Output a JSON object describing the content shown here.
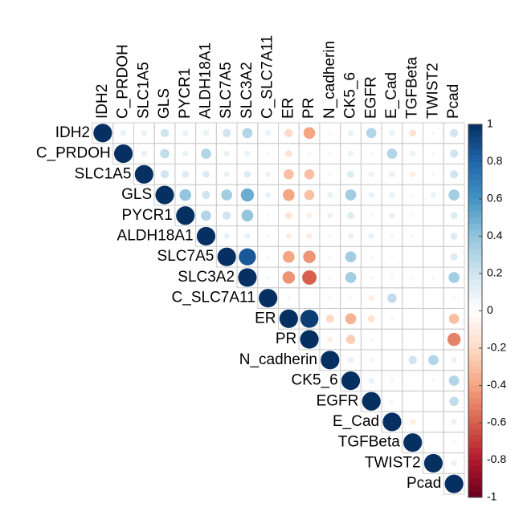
{
  "chart_data": {
    "type": "corrplot",
    "variables": [
      "IDH2",
      "C_PRDOH",
      "SLC1A5",
      "GLS",
      "PYCR1",
      "ALDH18A1",
      "SLC7A5",
      "SLC3A2",
      "C_SLC7A11",
      "ER",
      "PR",
      "N_cadherin",
      "CK5_6",
      "EGFR",
      "E_Cad",
      "TGFBeta",
      "TWIST2",
      "Pcad"
    ],
    "values": [
      [
        1,
        0.1,
        0.1,
        0.2,
        0.1,
        0.1,
        0.2,
        0.3,
        0.1,
        -0.2,
        -0.4,
        0.05,
        0.1,
        0.3,
        0.1,
        -0.15,
        0.05,
        0.2
      ],
      [
        1,
        0.1,
        0.25,
        0.1,
        0.3,
        0.1,
        0.1,
        0.05,
        -0.15,
        -0.05,
        0.05,
        0.1,
        0.05,
        0.3,
        0.1,
        0.05,
        0.2
      ],
      [
        1,
        0.2,
        0.15,
        0.15,
        0.1,
        0.15,
        0.1,
        -0.3,
        -0.3,
        0.05,
        0.15,
        0.1,
        0.1,
        -0.1,
        0.05,
        0.2
      ],
      [
        1,
        0.4,
        0.2,
        0.35,
        0.5,
        0.1,
        -0.4,
        -0.3,
        0.1,
        0.35,
        0.1,
        0.1,
        0.05,
        0.1,
        0.35
      ],
      [
        1,
        0.3,
        0.2,
        0.4,
        0.05,
        -0.15,
        -0.1,
        0.1,
        0.15,
        0.05,
        0.1,
        0.05,
        0.02,
        0.15
      ],
      [
        1,
        0.1,
        0.1,
        0.05,
        -0.1,
        -0.1,
        0.05,
        0.1,
        0.1,
        0.05,
        0.05,
        0.02,
        0.15
      ],
      [
        1,
        0.85,
        0.05,
        -0.4,
        -0.45,
        0.05,
        0.35,
        0.05,
        0.05,
        0.02,
        0.02,
        0.15
      ],
      [
        1,
        0.05,
        -0.45,
        -0.6,
        0.05,
        0.35,
        0.05,
        0.05,
        0.05,
        0.05,
        0.35
      ],
      [
        1,
        -0.05,
        0.02,
        0.05,
        0.05,
        -0.1,
        0.25,
        0.02,
        0.02,
        0.05
      ],
      [
        1,
        0.95,
        -0.2,
        -0.35,
        -0.15,
        0.05,
        0.02,
        0.02,
        -0.3
      ],
      [
        1,
        -0.1,
        -0.25,
        -0.05,
        0.02,
        0.02,
        0.02,
        -0.5
      ],
      [
        1,
        0.1,
        0.05,
        0.05,
        0.2,
        0.3,
        0.1
      ],
      [
        1,
        0.1,
        0.05,
        0.02,
        0.05,
        0.3
      ],
      [
        1,
        0.05,
        0.02,
        0.02,
        0.25
      ],
      [
        1,
        -0.1,
        0.02,
        0.1
      ],
      [
        1,
        0.02,
        0.05
      ],
      [
        1,
        0.1
      ],
      [
        1
      ]
    ],
    "zlim": [
      -1,
      1
    ],
    "zticks": [
      1,
      0.8,
      0.6,
      0.4,
      0.2,
      0,
      -0.2,
      -0.4,
      -0.6,
      -0.8,
      -1
    ],
    "colorscale": [
      "#67001F",
      "#B2182B",
      "#D6604D",
      "#F4A582",
      "#FDDBC7",
      "#FFFFFF",
      "#D1E5F0",
      "#92C5DE",
      "#4393C3",
      "#2166AC",
      "#053061"
    ]
  }
}
